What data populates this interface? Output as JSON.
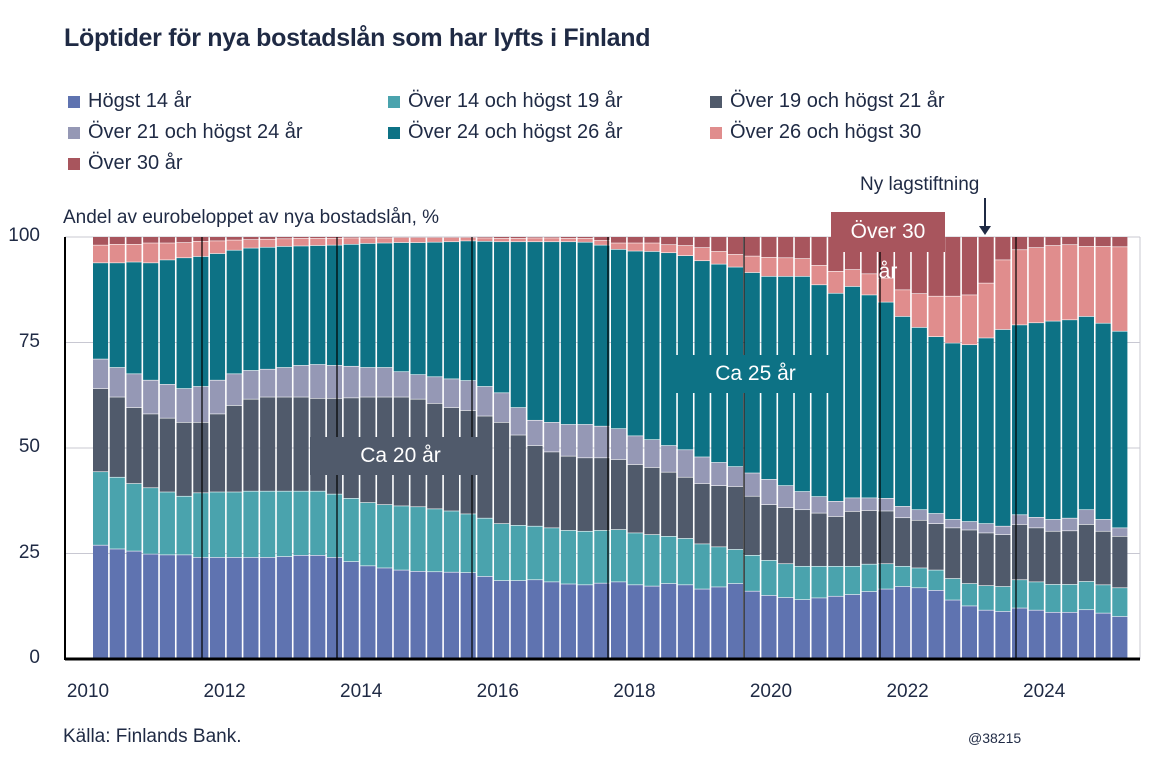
{
  "chart_data": {
    "type": "bar",
    "stacked": true,
    "title": "Löptider för nya bostadslån som har lyfts i Finland",
    "ylabel": "Andel av eurobeloppet av nya bostadslån, %",
    "xlabel": "",
    "ylim": [
      0,
      100
    ],
    "yticks": [
      "0",
      "25",
      "50",
      "75",
      "100"
    ],
    "xticks": [
      "2010",
      "2012",
      "2014",
      "2016",
      "2018",
      "2020",
      "2022",
      "2024"
    ],
    "grid": "horizontal",
    "legend_position": "top",
    "x": [
      "2010-Q1",
      "2010-Q2",
      "2010-Q3",
      "2010-Q4",
      "2011-Q1",
      "2011-Q2",
      "2011-Q3",
      "2011-Q4",
      "2012-Q1",
      "2012-Q2",
      "2012-Q3",
      "2012-Q4",
      "2013-Q1",
      "2013-Q2",
      "2013-Q3",
      "2013-Q4",
      "2014-Q1",
      "2014-Q2",
      "2014-Q3",
      "2014-Q4",
      "2015-Q1",
      "2015-Q2",
      "2015-Q3",
      "2015-Q4",
      "2016-Q1",
      "2016-Q2",
      "2016-Q3",
      "2016-Q4",
      "2017-Q1",
      "2017-Q2",
      "2017-Q3",
      "2017-Q4",
      "2018-Q1",
      "2018-Q2",
      "2018-Q3",
      "2018-Q4",
      "2019-Q1",
      "2019-Q2",
      "2019-Q3",
      "2019-Q4",
      "2020-Q1",
      "2020-Q2",
      "2020-Q3",
      "2020-Q4",
      "2021-Q1",
      "2021-Q2",
      "2021-Q3",
      "2021-Q4",
      "2022-Q1",
      "2022-Q2",
      "2022-Q3",
      "2022-Q4",
      "2023-Q1",
      "2023-Q2",
      "2023-Q3",
      "2023-Q4",
      "2024-Q1",
      "2024-Q2",
      "2024-Q3",
      "2024-Q4",
      "2025-Q1",
      "2025-Q2"
    ],
    "series": [
      {
        "name": "Högst 14 år",
        "color": "#5f73b0",
        "values": [
          26.9,
          26,
          25.5,
          24.8,
          24.6,
          24.6,
          24,
          24,
          24,
          24,
          24,
          24.2,
          24.5,
          24.5,
          24,
          23,
          22,
          21.5,
          21,
          20.7,
          20.6,
          20.5,
          20.4,
          19.5,
          18.5,
          18.5,
          18.7,
          18.2,
          17.7,
          17.5,
          17.9,
          18.2,
          17.5,
          17.2,
          17.8,
          17.5,
          16.5,
          17,
          17.8,
          16,
          15,
          14.5,
          14,
          14.4,
          14.8,
          15.2,
          15.9,
          16.5,
          17.1,
          16.8,
          16.2,
          13.9,
          12.5,
          11.5,
          11.2,
          12,
          11.5,
          11,
          11,
          11.6,
          10.8,
          10
        ]
      },
      {
        "name": "Över 14 och högst 19 år",
        "color": "#4aa3ad",
        "values": [
          17.4,
          17,
          16,
          15.7,
          14.9,
          13.9,
          15.3,
          15.5,
          15.5,
          15.7,
          15.7,
          15.5,
          15.2,
          15.2,
          15,
          15,
          15,
          15,
          15.2,
          15.3,
          14.9,
          14.5,
          13.9,
          13.8,
          13.5,
          13.1,
          12.7,
          12.8,
          12.7,
          12.7,
          12.5,
          12.4,
          12.3,
          12.2,
          11.2,
          11,
          10.7,
          9.5,
          8.1,
          8.5,
          8.3,
          8,
          7.9,
          7.5,
          7.1,
          6.7,
          6.5,
          6,
          4.8,
          4.7,
          4.8,
          5.1,
          5.3,
          5.8,
          5.9,
          6.7,
          6.7,
          6.6,
          6.6,
          6.7,
          6.7,
          6.8
        ]
      },
      {
        "name": "Över 19 och högst 21 år",
        "color": "#505a6b",
        "values": [
          19.7,
          19,
          18,
          17.5,
          17.5,
          17.5,
          16.7,
          18.5,
          20.5,
          21.8,
          22.3,
          22.3,
          22.3,
          22,
          22.7,
          23.8,
          25,
          25.5,
          25.8,
          25.5,
          25,
          24.5,
          24.5,
          24.2,
          24,
          21.4,
          19.1,
          18,
          17.6,
          17.4,
          17.2,
          16.6,
          16.2,
          15.9,
          15.2,
          14.5,
          14.3,
          14.5,
          14.9,
          14,
          13.2,
          13.3,
          13.4,
          12.6,
          11.8,
          13,
          12.7,
          12.5,
          11.5,
          11.3,
          11,
          12,
          12.7,
          12.5,
          12.3,
          13.1,
          12.8,
          12.6,
          12.7,
          13.5,
          12.7,
          12.2
        ]
      },
      {
        "name": "Över 21 och högst 24 år",
        "color": "#9598b5",
        "values": [
          7,
          7,
          8,
          8,
          8,
          8,
          8.5,
          8,
          7.5,
          6.8,
          6.6,
          7,
          7.5,
          8,
          7.8,
          7.5,
          7,
          7,
          6,
          5.8,
          6.3,
          6.8,
          7.1,
          7,
          7,
          6.5,
          6,
          7,
          7.5,
          7.9,
          7.5,
          7.3,
          6.8,
          6.6,
          6.3,
          6.5,
          6.3,
          5.5,
          4.7,
          5.5,
          6,
          5.2,
          4.3,
          3.9,
          3.6,
          3.2,
          3,
          3,
          2.7,
          2.5,
          2.4,
          2,
          2,
          2.2,
          2,
          2.3,
          2.5,
          2.8,
          3,
          3.5,
          2.8,
          2
        ]
      },
      {
        "name": "Över 24 och högst 26 år",
        "color": "#0d7285",
        "values": [
          22.8,
          24.8,
          26.5,
          27.8,
          29.5,
          31,
          30.8,
          30,
          29.3,
          29,
          28.9,
          28.7,
          28.3,
          28.2,
          28.5,
          28.9,
          29.4,
          29.5,
          30.6,
          31.3,
          31.9,
          32.5,
          33.1,
          34.4,
          35.8,
          39.3,
          42.3,
          42.8,
          43.3,
          43.2,
          42.9,
          42.5,
          43.8,
          44.6,
          45.7,
          46,
          46.5,
          47,
          47.3,
          47.5,
          48.1,
          49.6,
          51,
          50.2,
          49.3,
          50.1,
          48.1,
          46.5,
          45,
          43.2,
          41.9,
          41.8,
          41.9,
          44,
          46.6,
          45,
          46.1,
          47,
          47,
          45.8,
          46.5,
          46.6
        ]
      },
      {
        "name": "Över 26 och högst 30",
        "color": "#e08d8d",
        "values": [
          4.2,
          4.4,
          4.2,
          4.7,
          4,
          3.6,
          3.6,
          3,
          2.4,
          2,
          1.9,
          1.8,
          1.8,
          1.7,
          1.6,
          1.5,
          1.3,
          1.2,
          1.2,
          1.2,
          1.1,
          1,
          0.8,
          0.8,
          0.8,
          0.8,
          0.9,
          0.9,
          0.8,
          0.9,
          1.1,
          1.5,
          1.9,
          2,
          1.9,
          2.4,
          3.1,
          3,
          3,
          3.9,
          4.5,
          4.4,
          4.2,
          4.6,
          5.2,
          4,
          5,
          5.7,
          6.3,
          8,
          9.6,
          11.1,
          11.8,
          13,
          16.5,
          17.8,
          17.8,
          17.9,
          17.8,
          16.6,
          18.2,
          20
        ]
      },
      {
        "name": "Över 30 år",
        "color": "#a8555d",
        "values": [
          2,
          1.8,
          1.8,
          1.5,
          1.5,
          1.4,
          1.1,
          1,
          0.8,
          0.7,
          0.6,
          0.5,
          0.4,
          0.4,
          0.4,
          0.3,
          0.3,
          0.3,
          0.2,
          0.2,
          0.2,
          0.2,
          0.2,
          0.3,
          0.4,
          0.4,
          0.3,
          0.3,
          0.4,
          0.4,
          0.9,
          1.5,
          1.5,
          1.5,
          1.9,
          2.1,
          2.6,
          3.5,
          4.2,
          4.6,
          4.9,
          5,
          5.2,
          6.8,
          8.2,
          7.8,
          8.8,
          9.8,
          12.6,
          13.5,
          14.1,
          14.1,
          13.8,
          11,
          5.5,
          3.1,
          2.6,
          2.1,
          1.9,
          2.3,
          2.3,
          2.4
        ]
      }
    ],
    "annotations": [
      {
        "text": "Ca 20 år",
        "color": "#505a6b"
      },
      {
        "text": "Ca 25 år",
        "color": "#0d7285"
      },
      {
        "text": "Över 30 år",
        "color": "#a8555d"
      },
      {
        "text": "Ny lagstiftning"
      }
    ],
    "source": "Källa: Finlands Bank.",
    "code": "@38215"
  }
}
